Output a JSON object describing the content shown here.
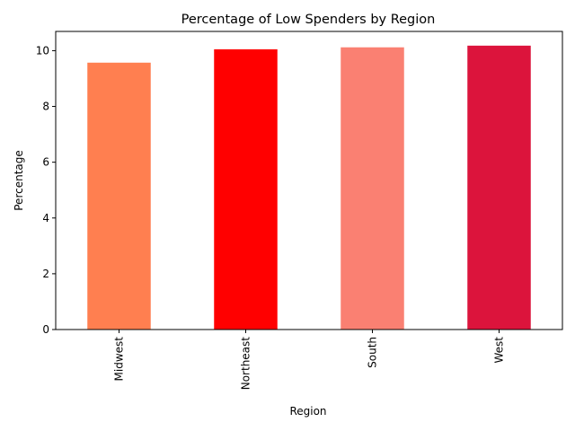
{
  "chart_data": {
    "type": "bar",
    "title": "Percentage of Low Spenders by Region",
    "xlabel": "Region",
    "ylabel": "Percentage",
    "categories": [
      "Midwest",
      "Northeast",
      "South",
      "West"
    ],
    "values": [
      9.57,
      10.05,
      10.12,
      10.18
    ],
    "colors": [
      "#ff7f50",
      "#ff0000",
      "#fa8072",
      "#dc143c"
    ],
    "ylim": [
      0,
      10.69
    ],
    "yticks": [
      0,
      2,
      4,
      6,
      8,
      10
    ],
    "grid": false,
    "legend": false
  }
}
